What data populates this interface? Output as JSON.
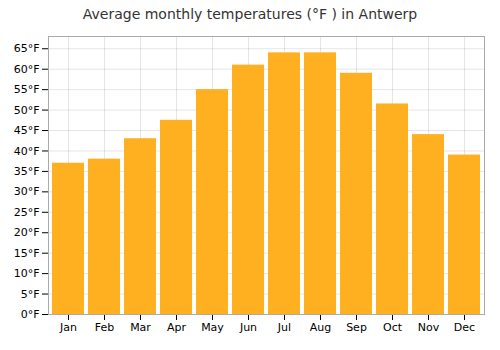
{
  "chart_data": {
    "type": "bar",
    "title": "Average monthly temperatures (°F ) in Antwerp",
    "categories": [
      "Jan",
      "Feb",
      "Mar",
      "Apr",
      "May",
      "Jun",
      "Jul",
      "Aug",
      "Sep",
      "Oct",
      "Nov",
      "Dec"
    ],
    "values": [
      37,
      38,
      43,
      47.5,
      55,
      61,
      64,
      64,
      59,
      51.5,
      44,
      39
    ],
    "color": "#FFB020",
    "ylim": [
      0,
      68
    ],
    "yticks": [
      {
        "value": 0,
        "label": "0°F"
      },
      {
        "value": 5,
        "label": "5°F"
      },
      {
        "value": 10,
        "label": "10°F"
      },
      {
        "value": 15,
        "label": "15°F"
      },
      {
        "value": 20,
        "label": "20°F"
      },
      {
        "value": 25,
        "label": "25°F"
      },
      {
        "value": 30,
        "label": "30°F"
      },
      {
        "value": 35,
        "label": "35°F"
      },
      {
        "value": 40,
        "label": "40°F"
      },
      {
        "value": 45,
        "label": "45°F"
      },
      {
        "value": 50,
        "label": "50°F"
      },
      {
        "value": 55,
        "label": "55°F"
      },
      {
        "value": 60,
        "label": "60°F"
      },
      {
        "value": 65,
        "label": "65°F"
      }
    ],
    "grid": true
  }
}
